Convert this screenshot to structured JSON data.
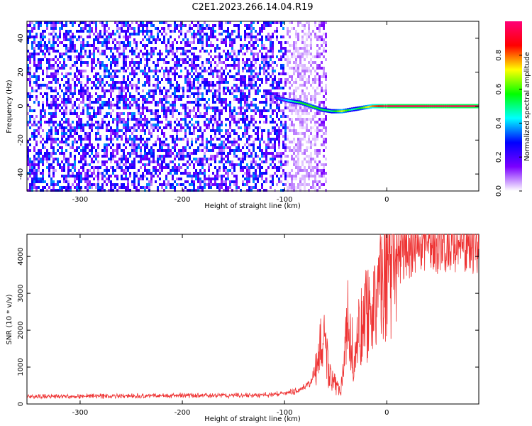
{
  "title": "C2E1.2023.266.14.04.R19",
  "chart_data": [
    {
      "type": "heatmap",
      "xlabel": "Height of straight line (km)",
      "ylabel": "Frequency (Hz)",
      "xlim": [
        -352,
        90
      ],
      "ylim": [
        -50,
        50
      ],
      "xticks": [
        -300,
        -200,
        -100,
        0
      ],
      "yticks": [
        -40,
        -20,
        0,
        20,
        40
      ],
      "colorbar": {
        "label": "Normalized spectral amplitude",
        "range": [
          0,
          1
        ],
        "ticks": [
          0.0,
          0.2,
          0.4,
          0.6,
          0.8
        ],
        "colors": [
          "#ffffff",
          "#7b00ff",
          "#0000ff",
          "#00ffff",
          "#00ff00",
          "#ffff00",
          "#ff0000",
          "#ff0077"
        ]
      },
      "noise_region": {
        "x_start": -352,
        "x_end": -100,
        "amplitude": 0.25
      },
      "gap_region": {
        "x_start": -100,
        "x_end": -70,
        "amplitude": 0.06
      },
      "secondary_band": {
        "x_start": -70,
        "x_end": -60,
        "amplitude": 0.1
      },
      "line_trace": [
        {
          "x": -110,
          "freq": 5,
          "amp": 0.3
        },
        {
          "x": -95,
          "freq": 3,
          "amp": 0.45
        },
        {
          "x": -85,
          "freq": 2,
          "amp": 0.55
        },
        {
          "x": -75,
          "freq": 0,
          "amp": 0.6
        },
        {
          "x": -65,
          "freq": -2,
          "amp": 0.55
        },
        {
          "x": -55,
          "freq": -3,
          "amp": 0.5
        },
        {
          "x": -45,
          "freq": -3,
          "amp": 0.7
        },
        {
          "x": -35,
          "freq": -2,
          "amp": 0.45
        },
        {
          "x": -25,
          "freq": -1,
          "amp": 0.6
        },
        {
          "x": -15,
          "freq": 0,
          "amp": 0.8
        },
        {
          "x": -5,
          "freq": 0,
          "amp": 0.9
        },
        {
          "x": 0,
          "freq": 0,
          "amp": 0.95
        },
        {
          "x": 90,
          "freq": 0,
          "amp": 0.95
        }
      ]
    },
    {
      "type": "line",
      "xlabel": "Height of straight line (km)",
      "ylabel": "SNR (10 * v/v)",
      "xlim": [
        -352,
        90
      ],
      "ylim": [
        0,
        4600
      ],
      "xticks": [
        -300,
        -200,
        -100,
        0
      ],
      "yticks": [
        0,
        1000,
        2000,
        3000,
        4000
      ],
      "color": "#ee3333",
      "series": [
        {
          "x": [
            -352,
            -300,
            -250,
            -200,
            -150,
            -120,
            -100,
            -90,
            -80,
            -75,
            -70,
            -66,
            -62,
            -60,
            -57,
            -55,
            -50,
            -45,
            -42,
            -40,
            -38,
            -35,
            -32,
            -30,
            -28,
            -25,
            -22,
            -20,
            -18,
            -16,
            -14,
            -12,
            -10,
            -8,
            -6,
            -4,
            -2,
            0,
            5,
            10,
            15,
            20,
            30,
            40,
            50,
            60,
            70,
            80,
            90
          ],
          "y": [
            200,
            210,
            220,
            230,
            230,
            240,
            280,
            350,
            450,
            600,
            900,
            1400,
            1800,
            1500,
            900,
            700,
            500,
            400,
            800,
            1600,
            2300,
            1700,
            1200,
            1500,
            1900,
            2100,
            2300,
            2600,
            2400,
            2000,
            2300,
            2700,
            2900,
            3100,
            3300,
            3450,
            3600,
            3650,
            3800,
            3950,
            4050,
            4150,
            4250,
            4300,
            4310,
            4320,
            4300,
            4310,
            4280
          ]
        }
      ]
    }
  ]
}
